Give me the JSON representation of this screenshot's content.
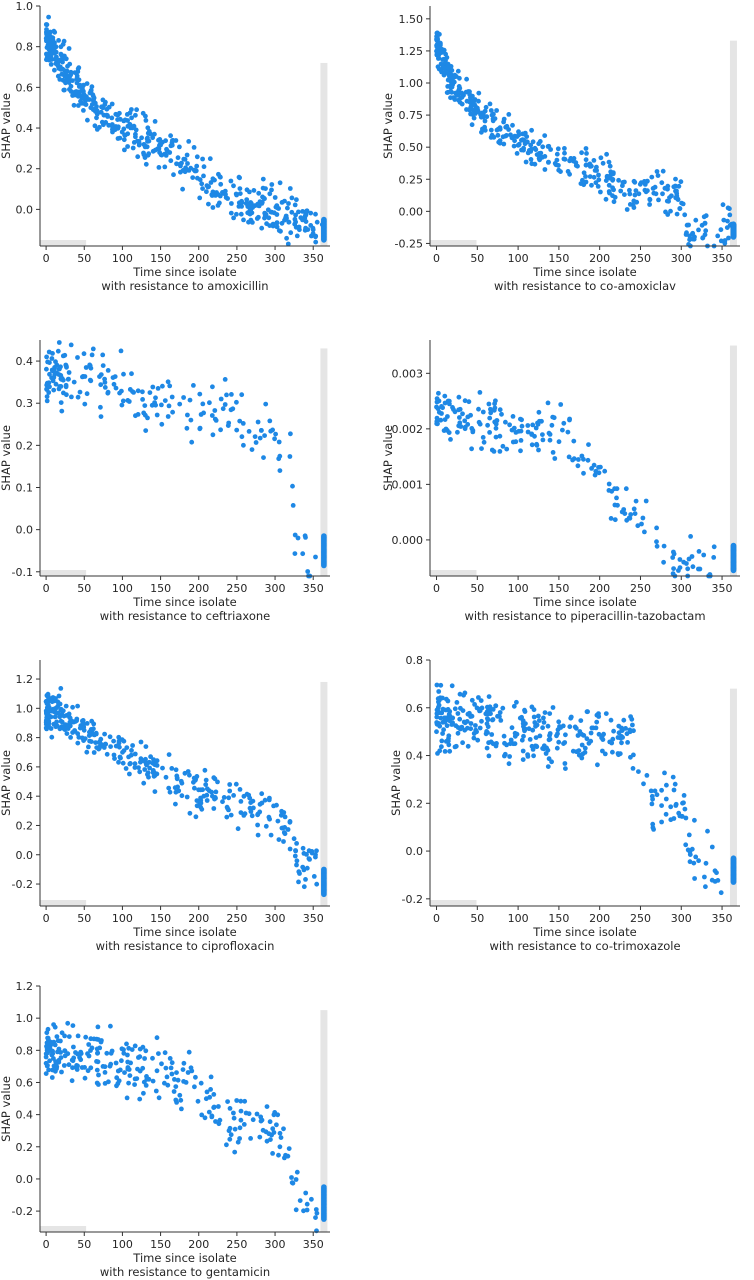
{
  "chart_data": [
    {
      "type": "scatter",
      "xlabel": "Time since isolate",
      "xlabel2": "with resistance to amoxicillin",
      "ylabel": "SHAP value",
      "xlim": [
        -8,
        372
      ],
      "ylim": [
        -0.18,
        1.0
      ],
      "xticks": [
        0,
        50,
        100,
        150,
        200,
        250,
        300,
        350
      ],
      "yticks": [
        0.0,
        0.2,
        0.4,
        0.6,
        0.8,
        1.0
      ],
      "ytick_labels": [
        "0.0",
        "0.2",
        "0.4",
        "0.6",
        "0.8",
        "1.0"
      ],
      "grid": false,
      "point_color": "#1e88e5",
      "histogram_color": "#e5e5e5",
      "trend": [
        [
          0,
          0.82
        ],
        [
          10,
          0.78
        ],
        [
          20,
          0.7
        ],
        [
          40,
          0.58
        ],
        [
          60,
          0.52
        ],
        [
          100,
          0.42
        ],
        [
          150,
          0.32
        ],
        [
          200,
          0.18
        ],
        [
          215,
          0.1
        ],
        [
          250,
          0.04
        ],
        [
          300,
          0.0
        ],
        [
          340,
          -0.06
        ],
        [
          360,
          -0.1
        ]
      ],
      "spread": 0.09,
      "n_points": 520,
      "x_max_scatter": 362,
      "stack_x": 364,
      "stack_range": [
        -0.15,
        -0.05
      ],
      "hist_bar": {
        "x": 364,
        "top": 0.72
      }
    },
    {
      "type": "scatter",
      "xlabel": "Time since isolate",
      "xlabel2": "with resistance to co-amoxiclav",
      "ylabel": "SHAP value",
      "xlim": [
        -8,
        372
      ],
      "ylim": [
        -0.27,
        1.6
      ],
      "xticks": [
        0,
        50,
        100,
        150,
        200,
        250,
        300,
        350
      ],
      "yticks": [
        -0.25,
        0.0,
        0.25,
        0.5,
        0.75,
        1.0,
        1.25,
        1.5
      ],
      "ytick_labels": [
        "-0.25",
        "0.00",
        "0.25",
        "0.50",
        "0.75",
        "1.00",
        "1.25",
        "1.50"
      ],
      "grid": false,
      "point_color": "#1e88e5",
      "histogram_color": "#e5e5e5",
      "trend": [
        [
          0,
          1.3
        ],
        [
          10,
          1.15
        ],
        [
          20,
          1.0
        ],
        [
          40,
          0.85
        ],
        [
          60,
          0.72
        ],
        [
          100,
          0.55
        ],
        [
          150,
          0.4
        ],
        [
          200,
          0.28
        ],
        [
          240,
          0.17
        ],
        [
          300,
          0.13
        ],
        [
          305,
          -0.12
        ],
        [
          360,
          -0.15
        ]
      ],
      "spread": 0.13,
      "n_points": 430,
      "x_max_scatter": 362,
      "stack_x": 364,
      "stack_range": [
        -0.2,
        -0.1
      ],
      "hist_bar": {
        "x": 364,
        "top": 1.33
      }
    },
    {
      "type": "scatter",
      "xlabel": "Time since isolate",
      "xlabel2": "with resistance to ceftriaxone",
      "ylabel": "SHAP value",
      "xlim": [
        -8,
        372
      ],
      "ylim": [
        -0.11,
        0.45
      ],
      "xticks": [
        0,
        50,
        100,
        150,
        200,
        250,
        300,
        350
      ],
      "yticks": [
        -0.1,
        0.0,
        0.1,
        0.2,
        0.3,
        0.4
      ],
      "ytick_labels": [
        "-0.1",
        "0.0",
        "0.1",
        "0.2",
        "0.3",
        "0.4"
      ],
      "grid": false,
      "point_color": "#1e88e5",
      "histogram_color": "#e5e5e5",
      "trend": [
        [
          0,
          0.37
        ],
        [
          50,
          0.36
        ],
        [
          100,
          0.33
        ],
        [
          150,
          0.31
        ],
        [
          200,
          0.28
        ],
        [
          250,
          0.27
        ],
        [
          300,
          0.22
        ],
        [
          320,
          0.15
        ],
        [
          330,
          -0.065
        ],
        [
          355,
          -0.065
        ]
      ],
      "spread": 0.06,
      "n_points": 210,
      "x_max_scatter": 355,
      "stack_x": 364,
      "stack_range": [
        -0.085,
        -0.015
      ],
      "hist_bar": {
        "x": 364,
        "top": 0.43
      }
    },
    {
      "type": "scatter",
      "xlabel": "Time since isolate",
      "xlabel2": "with resistance to piperacillin-tazobactam",
      "ylabel": "SHAP value",
      "xlim": [
        -8,
        372
      ],
      "ylim": [
        -0.00065,
        0.0036
      ],
      "xticks": [
        0,
        50,
        100,
        150,
        200,
        250,
        300,
        350
      ],
      "yticks": [
        0.0,
        0.001,
        0.002,
        0.003
      ],
      "ytick_labels": [
        "0.000",
        "0.001",
        "0.002",
        "0.003"
      ],
      "grid": false,
      "point_color": "#1e88e5",
      "histogram_color": "#e5e5e5",
      "trend": [
        [
          0,
          0.0023
        ],
        [
          50,
          0.0021
        ],
        [
          100,
          0.002
        ],
        [
          150,
          0.0019
        ],
        [
          180,
          0.0015
        ],
        [
          220,
          0.0008
        ],
        [
          260,
          0.0003
        ],
        [
          280,
          -0.0003
        ],
        [
          340,
          -0.0005
        ]
      ],
      "spread": 0.0004,
      "n_points": 210,
      "x_max_scatter": 345,
      "stack_x": 364,
      "stack_range": [
        -0.00055,
        -0.0001
      ],
      "hist_bar": {
        "x": 364,
        "top": 0.0035
      }
    },
    {
      "type": "scatter",
      "xlabel": "Time since isolate",
      "xlabel2": "with resistance to ciprofloxacin",
      "ylabel": "SHAP value",
      "xlim": [
        -8,
        372
      ],
      "ylim": [
        -0.35,
        1.33
      ],
      "xticks": [
        0,
        50,
        100,
        150,
        200,
        250,
        300,
        350
      ],
      "yticks": [
        -0.2,
        0.0,
        0.2,
        0.4,
        0.6,
        0.8,
        1.0,
        1.2
      ],
      "ytick_labels": [
        "-0.2",
        "0.0",
        "0.2",
        "0.4",
        "0.6",
        "0.8",
        "1.0",
        "1.2"
      ],
      "grid": false,
      "point_color": "#1e88e5",
      "histogram_color": "#e5e5e5",
      "trend": [
        [
          0,
          0.98
        ],
        [
          25,
          0.95
        ],
        [
          50,
          0.85
        ],
        [
          100,
          0.7
        ],
        [
          150,
          0.55
        ],
        [
          200,
          0.42
        ],
        [
          250,
          0.35
        ],
        [
          300,
          0.25
        ],
        [
          325,
          0.15
        ],
        [
          330,
          -0.05
        ],
        [
          355,
          -0.05
        ]
      ],
      "spread": 0.12,
      "n_points": 360,
      "x_max_scatter": 355,
      "stack_x": 364,
      "stack_range": [
        -0.27,
        -0.1
      ],
      "hist_bar": {
        "x": 364,
        "top": 1.18
      }
    },
    {
      "type": "scatter",
      "xlabel": "Time since isolate",
      "xlabel2": "with resistance to co-trimoxazole",
      "ylabel": "SHAP value",
      "xlim": [
        -8,
        372
      ],
      "ylim": [
        -0.23,
        0.8
      ],
      "xticks": [
        0,
        50,
        100,
        150,
        200,
        250,
        300,
        350
      ],
      "yticks": [
        -0.2,
        0.0,
        0.2,
        0.4,
        0.6,
        0.8
      ],
      "ytick_labels": [
        "-0.2",
        "0.0",
        "0.2",
        "0.4",
        "0.6",
        "0.8"
      ],
      "grid": false,
      "point_color": "#1e88e5",
      "histogram_color": "#e5e5e5",
      "trend": [
        [
          0,
          0.55
        ],
        [
          30,
          0.55
        ],
        [
          100,
          0.5
        ],
        [
          150,
          0.5
        ],
        [
          200,
          0.48
        ],
        [
          240,
          0.45
        ],
        [
          250,
          0.25
        ],
        [
          300,
          0.2
        ],
        [
          310,
          0.0
        ],
        [
          345,
          -0.08
        ]
      ],
      "spread": 0.1,
      "n_points": 360,
      "x_max_scatter": 350,
      "stack_x": 364,
      "stack_range": [
        -0.13,
        -0.03
      ],
      "hist_bar": {
        "x": 364,
        "top": 0.68
      }
    },
    {
      "type": "scatter",
      "xlabel": "Time since isolate",
      "xlabel2": "with resistance to gentamicin",
      "ylabel": "SHAP value",
      "xlim": [
        -8,
        372
      ],
      "ylim": [
        -0.33,
        1.2
      ],
      "xticks": [
        0,
        50,
        100,
        150,
        200,
        250,
        300,
        350
      ],
      "yticks": [
        -0.2,
        0.0,
        0.2,
        0.4,
        0.6,
        0.8,
        1.0,
        1.2
      ],
      "ytick_labels": [
        "-0.2",
        "0.0",
        "0.2",
        "0.4",
        "0.6",
        "0.8",
        "1.0",
        "1.2"
      ],
      "grid": false,
      "point_color": "#1e88e5",
      "histogram_color": "#e5e5e5",
      "trend": [
        [
          0,
          0.8
        ],
        [
          50,
          0.75
        ],
        [
          100,
          0.72
        ],
        [
          150,
          0.68
        ],
        [
          200,
          0.55
        ],
        [
          240,
          0.32
        ],
        [
          300,
          0.28
        ],
        [
          320,
          0.12
        ],
        [
          330,
          -0.15
        ],
        [
          355,
          -0.18
        ]
      ],
      "spread": 0.14,
      "n_points": 290,
      "x_max_scatter": 355,
      "stack_x": 364,
      "stack_range": [
        -0.25,
        -0.05
      ],
      "hist_bar": {
        "x": 364,
        "top": 1.05
      }
    }
  ]
}
